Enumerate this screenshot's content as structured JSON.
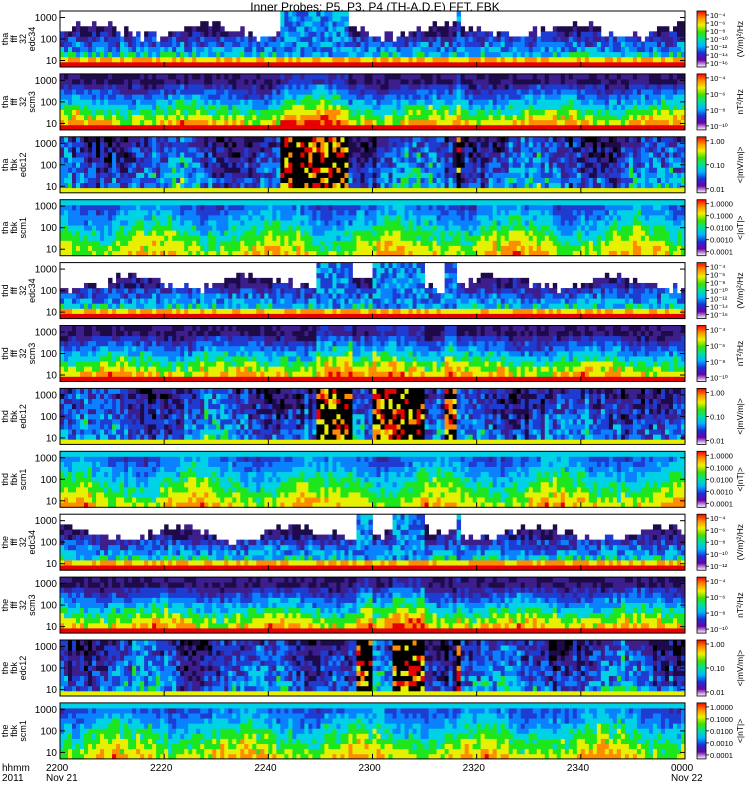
{
  "title": "Inner Probes: P5, P3, P4 (TH-A,D,E) FFT, FBK",
  "x_axis": {
    "row_labels": [
      "hhmm",
      "2011"
    ],
    "ticks": [
      {
        "label": "2200",
        "sub": "Nov 21"
      },
      {
        "label": "2220",
        "sub": ""
      },
      {
        "label": "2240",
        "sub": ""
      },
      {
        "label": "2300",
        "sub": ""
      },
      {
        "label": "2320",
        "sub": ""
      },
      {
        "label": "2340",
        "sub": ""
      },
      {
        "label": "0000",
        "sub": "Nov 22"
      }
    ]
  },
  "panels": [
    {
      "probe": "tha",
      "ylabel": [
        "tha",
        "fff",
        "32",
        "edc34"
      ],
      "yticks": [
        "1000",
        "100",
        "10"
      ],
      "clabel": "(V/m)²/Hz",
      "cticks": [
        "10⁻⁴",
        "10⁻⁶",
        "10⁻⁸",
        "10⁻¹⁰",
        "10⁻¹²",
        "10⁻¹⁴",
        "10⁻¹⁶"
      ]
    },
    {
      "probe": "tha",
      "ylabel": [
        "tha",
        "fff",
        "32",
        "scm3"
      ],
      "yticks": [
        "1000",
        "100",
        "10"
      ],
      "clabel": "nT²/Hz",
      "cticks": [
        "10⁻⁴",
        "10⁻⁶",
        "10⁻⁸",
        "10⁻¹⁰"
      ]
    },
    {
      "probe": "tha",
      "ylabel": [
        "tha",
        "fbk",
        "edc12"
      ],
      "yticks": [
        "1000",
        "100",
        "10"
      ],
      "clabel": "<|mV/m|>",
      "cticks": [
        "1.00",
        "0.10",
        "0.01"
      ]
    },
    {
      "probe": "tha",
      "ylabel": [
        "tha",
        "fbk",
        "scm1"
      ],
      "yticks": [
        "1000",
        "100",
        "10"
      ],
      "clabel": "<|nT|>",
      "cticks": [
        "1.0000",
        "0.1000",
        "0.0100",
        "0.0010",
        "0.0001"
      ]
    },
    {
      "probe": "thd",
      "ylabel": [
        "thd",
        "fff",
        "32",
        "edc34"
      ],
      "yticks": [
        "1000",
        "100",
        "10"
      ],
      "clabel": "(V/m)²/Hz",
      "cticks": [
        "10⁻⁴",
        "10⁻⁶",
        "10⁻⁸",
        "10⁻¹⁰",
        "10⁻¹²",
        "10⁻¹⁴",
        "10⁻¹⁶"
      ]
    },
    {
      "probe": "thd",
      "ylabel": [
        "thd",
        "fff",
        "32",
        "scm3"
      ],
      "yticks": [
        "1000",
        "100",
        "10"
      ],
      "clabel": "nT²/Hz",
      "cticks": [
        "10⁻⁴",
        "10⁻⁶",
        "10⁻⁸",
        "10⁻¹⁰"
      ]
    },
    {
      "probe": "thd",
      "ylabel": [
        "thd",
        "fbk",
        "edc12"
      ],
      "yticks": [
        "1000",
        "100",
        "10"
      ],
      "clabel": "<|mV/m|>",
      "cticks": [
        "1.00",
        "0.10",
        "0.01"
      ]
    },
    {
      "probe": "thd",
      "ylabel": [
        "thd",
        "fbk",
        "scm1"
      ],
      "yticks": [
        "1000",
        "100",
        "10"
      ],
      "clabel": "<|nT|>",
      "cticks": [
        "1.0000",
        "0.1000",
        "0.0100",
        "0.0010",
        "0.0001"
      ]
    },
    {
      "probe": "the",
      "ylabel": [
        "the",
        "fff",
        "32",
        "edc34"
      ],
      "yticks": [
        "1000",
        "100",
        "10"
      ],
      "clabel": "(V/m)²/Hz",
      "cticks": [
        "10⁻⁴",
        "10⁻⁶",
        "10⁻⁸",
        "10⁻¹⁰",
        "10⁻¹²"
      ]
    },
    {
      "probe": "the",
      "ylabel": [
        "the",
        "fff",
        "32",
        "scm3"
      ],
      "yticks": [
        "1000",
        "100",
        "10"
      ],
      "clabel": "nT²/Hz",
      "cticks": [
        "10⁻⁴",
        "10⁻⁶",
        "10⁻⁸",
        "10⁻¹⁰"
      ]
    },
    {
      "probe": "the",
      "ylabel": [
        "the",
        "fbk",
        "edc12"
      ],
      "yticks": [
        "1000",
        "100",
        "10"
      ],
      "clabel": "<|mV/m|>",
      "cticks": [
        "1.00",
        "0.10",
        "0.01"
      ]
    },
    {
      "probe": "the",
      "ylabel": [
        "the",
        "fbk",
        "scm1"
      ],
      "yticks": [
        "1000",
        "100",
        "10"
      ],
      "clabel": "<|nT|>",
      "cticks": [
        "1.0000",
        "0.1000",
        "0.0100",
        "0.0010",
        "0.0001"
      ]
    }
  ],
  "chart_data": {
    "type": "heatmap",
    "title": "Inner Probes: P5, P3, P4 (TH-A,D,E) FFT, FBK",
    "x_range": [
      "2011-11-21 22:00",
      "2011-11-22 00:00"
    ],
    "x_tick_labels": [
      "2200",
      "2220",
      "2240",
      "2300",
      "2320",
      "2340",
      "0000"
    ],
    "y_scale": "log",
    "y_range_hz": [
      5,
      2000
    ],
    "y_tick_labels": [
      "10",
      "100",
      "1000"
    ],
    "colormap": "rainbow",
    "events": [
      {
        "probe": "tha",
        "intervals": [
          [
            "22:42",
            "22:55"
          ],
          [
            "23:16",
            "23:17"
          ]
        ]
      },
      {
        "probe": "thd",
        "intervals": [
          [
            "22:49",
            "22:56"
          ],
          [
            "23:00",
            "23:10"
          ],
          [
            "23:14",
            "23:16"
          ]
        ]
      },
      {
        "probe": "the",
        "intervals": [
          [
            "22:57",
            "23:00"
          ],
          [
            "23:04",
            "23:10"
          ],
          [
            "23:16",
            "23:17"
          ]
        ]
      }
    ]
  }
}
